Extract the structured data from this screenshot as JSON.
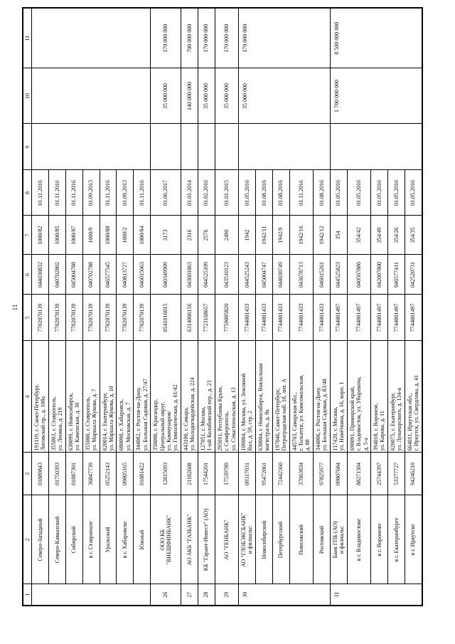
{
  "page": {
    "number": "11"
  },
  "table": {
    "headers": [
      "1",
      "2",
      "3",
      "4",
      "5",
      "6",
      "7",
      "8",
      "9",
      "10",
      "11"
    ],
    "rows": [
      {
        "cells": [
          {
            "c": 1,
            "t": "",
            "rs": 7
          },
          {
            "c": 2,
            "t": "Северо-Западный"
          },
          {
            "c": 3,
            "t": "01889843"
          },
          {
            "c": 4,
            "t": "191119, г. Санкт-Петербург,\nЛиговский пр., д. 108а"
          },
          {
            "c": 5,
            "t": "7702070139"
          },
          {
            "c": 6,
            "t": "044030832"
          },
          {
            "c": 7,
            "t": "1000/82"
          },
          {
            "c": 8,
            "t": "01.11.2016"
          },
          {
            "c": 9,
            "t": "",
            "rs": 7
          },
          {
            "c": 10,
            "t": "",
            "rs": 7
          },
          {
            "c": 11,
            "t": "",
            "rs": 7
          }
        ]
      },
      {
        "cells": [
          {
            "c": 2,
            "t": "Северо-Кавказский"
          },
          {
            "c": 3,
            "t": "01750393"
          },
          {
            "c": 4,
            "t": "355003, г. Ставрополь,\nул. Ленина, д. 219"
          },
          {
            "c": 5,
            "t": "7702070139"
          },
          {
            "c": 6,
            "t": "040702802"
          },
          {
            "c": 7,
            "t": "1000/85"
          },
          {
            "c": 8,
            "t": "01.11.2016"
          }
        ]
      },
      {
        "cells": [
          {
            "c": 2,
            "t": "Сибирский"
          },
          {
            "c": 3,
            "t": "01887301"
          },
          {
            "c": 4,
            "t": "630099, г. Новосибирск,\nул. Каменская, д. 30"
          },
          {
            "c": 5,
            "t": "7702070139"
          },
          {
            "c": 6,
            "t": "045004788"
          },
          {
            "c": 7,
            "t": "1000/87"
          },
          {
            "c": 8,
            "t": "01.11.2016"
          }
        ]
      },
      {
        "cells": [
          {
            "c": 2,
            "t": "в г. Ставрополе"
          },
          {
            "c": 3,
            "t": "36847739"
          },
          {
            "c": 4,
            "t": "355000, г. Ставрополь,\nул. Маршала Жукова, д. 7"
          },
          {
            "c": 5,
            "t": "7702070139"
          },
          {
            "c": 6,
            "t": "040702788"
          },
          {
            "c": 7,
            "t": "1000/9"
          },
          {
            "c": 8,
            "t": "01.09.2013"
          }
        ]
      },
      {
        "cells": [
          {
            "c": 2,
            "t": "Уральский"
          },
          {
            "c": 3,
            "t": "05252143"
          },
          {
            "c": 4,
            "t": "620014, г. Екатеринбург,\nул. Маршала Жукова, д. 10"
          },
          {
            "c": 5,
            "t": "7702070139"
          },
          {
            "c": 6,
            "t": "046577545"
          },
          {
            "c": 7,
            "t": "1000/88"
          },
          {
            "c": 8,
            "t": "01.11.2016"
          }
        ]
      },
      {
        "cells": [
          {
            "c": 2,
            "t": "в г. Хабаровске"
          },
          {
            "c": 3,
            "t": "09805165"
          },
          {
            "c": 4,
            "t": "680000, г. Хабаровск,\nул. Московская, д. 7"
          },
          {
            "c": 5,
            "t": "7702070139"
          },
          {
            "c": 6,
            "t": "040813727"
          },
          {
            "c": 7,
            "t": "1000/2"
          },
          {
            "c": 8,
            "t": "01.09.2013"
          }
        ]
      },
      {
        "cells": [
          {
            "c": 2,
            "t": "Южный"
          },
          {
            "c": 3,
            "t": "01881422"
          },
          {
            "c": 4,
            "t": "344082, г. Ростов-на-Дону,\nул. Большая Садовая, д. 27/47"
          },
          {
            "c": 5,
            "t": "7702070139"
          },
          {
            "c": 6,
            "t": "046015063"
          },
          {
            "c": 7,
            "t": "1000/84"
          },
          {
            "c": 8,
            "t": "01.11.2016"
          }
        ]
      },
      {
        "cells": [
          {
            "c": 1,
            "t": "26"
          },
          {
            "c": 2,
            "t": "ООО КБ\n\"ВНЕШФИНБАНК\""
          },
          {
            "c": 3,
            "t": "12815693"
          },
          {
            "c": 4,
            "t": "350000, г. Краснодар,\nЦентральный округ,\nул. Коммунаров/\nул. Гимназическая, д. 61/42"
          },
          {
            "c": 5,
            "t": "0541016015"
          },
          {
            "c": 6,
            "t": "040349909"
          },
          {
            "c": 7,
            "t": "3173"
          },
          {
            "c": 8,
            "t": "01.06.2017"
          },
          {
            "c": 9,
            "t": ""
          },
          {
            "c": 10,
            "t": "35 000 000"
          },
          {
            "c": 11,
            "t": "170 000 000"
          }
        ]
      },
      {
        "cells": [
          {
            "c": 1,
            "t": "27"
          },
          {
            "c": 2,
            "t": "АО АКБ \"ГАЗБАНК\""
          },
          {
            "c": 3,
            "t": "21182608"
          },
          {
            "c": 4,
            "t": "443100, г. Самара,\nул. Молодогвардейская, д. 224"
          },
          {
            "c": 5,
            "t": "6314006156"
          },
          {
            "c": 6,
            "t": "043601863"
          },
          {
            "c": 7,
            "t": "2316"
          },
          {
            "c": 8,
            "t": "01.01.2014"
          },
          {
            "c": 9,
            "t": ""
          },
          {
            "c": 10,
            "t": "140 000 000"
          },
          {
            "c": 11,
            "t": "700 000 000"
          }
        ]
      },
      {
        "cells": [
          {
            "c": 1,
            "t": "28"
          },
          {
            "c": 2,
            "t": "КБ \"Гарант-Инвест\" (АО)"
          },
          {
            "c": 3,
            "t": "17544201"
          },
          {
            "c": 4,
            "t": "127051, г. Москва,\n1-ый Колобовский пер., д. 23"
          },
          {
            "c": 5,
            "t": "7723168657"
          },
          {
            "c": 6,
            "t": "044525109"
          },
          {
            "c": 7,
            "t": "2576"
          },
          {
            "c": 8,
            "t": "01.02.2016"
          },
          {
            "c": 9,
            "t": ""
          },
          {
            "c": 10,
            "t": "35 000 000"
          },
          {
            "c": 11,
            "t": "170 000 000"
          }
        ]
      },
      {
        "cells": [
          {
            "c": 1,
            "t": "29"
          },
          {
            "c": 2,
            "t": "АО \"ГЕНБАНК\""
          },
          {
            "c": 3,
            "t": "17539789"
          },
          {
            "c": 4,
            "t": "295011, Республика Крым,\nг. Симферополь,\nул. Севастопольская, д. 13"
          },
          {
            "c": 5,
            "t": "7750005820"
          },
          {
            "c": 6,
            "t": "043510123"
          },
          {
            "c": 7,
            "t": "2490"
          },
          {
            "c": 8,
            "t": "01.01.2015"
          },
          {
            "c": 9,
            "t": ""
          },
          {
            "c": 10,
            "t": "35 000 000"
          },
          {
            "c": 11,
            "t": "170 000 000"
          }
        ]
      },
      {
        "cells": [
          {
            "c": 1,
            "t": "30",
            "rs": 5,
            "top": 1
          },
          {
            "c": 2,
            "t": "АО \"ГЛОБЭКСБАНК\"\nи филиалы:"
          },
          {
            "c": 3,
            "t": "09317031"
          },
          {
            "c": 4,
            "t": "109004, г. Москва, ул. Земляной\nВал, д. 59, стр. 2"
          },
          {
            "c": 5,
            "t": "7744001433"
          },
          {
            "c": 6,
            "t": "044525243"
          },
          {
            "c": 7,
            "t": "1942"
          },
          {
            "c": 8,
            "t": "01.05.2016"
          },
          {
            "c": 9,
            "t": "",
            "rs": 5
          },
          {
            "c": 10,
            "t": "35 000 000",
            "rs": 5,
            "top": 1
          },
          {
            "c": 11,
            "t": "170 000 000",
            "rs": 5,
            "top": 1
          }
        ]
      },
      {
        "cells": [
          {
            "c": 2,
            "t": "Новосибирский"
          },
          {
            "c": 3,
            "t": "95472061"
          },
          {
            "c": 4,
            "t": "630004, г. Новосибирск, Вокзальная\nмагистраль, д. 8а"
          },
          {
            "c": 5,
            "t": "7744001433"
          },
          {
            "c": 6,
            "t": "045004747"
          },
          {
            "c": 7,
            "t": "1942/11"
          },
          {
            "c": 8,
            "t": "01.08.2016"
          }
        ]
      },
      {
        "cells": [
          {
            "c": 2,
            "t": "Петербургский"
          },
          {
            "c": 3,
            "t": "72442360"
          },
          {
            "c": 4,
            "t": "197046, Санкт-Петербург,\nПетроградская наб. 18, лит. А"
          },
          {
            "c": 5,
            "t": "7744001433"
          },
          {
            "c": 6,
            "t": "044030749"
          },
          {
            "c": 7,
            "t": "1942/9"
          },
          {
            "c": 8,
            "t": "01.08.2016"
          }
        ]
      },
      {
        "cells": [
          {
            "c": 2,
            "t": "Поволжский"
          },
          {
            "c": 3,
            "t": "37063834"
          },
          {
            "c": 4,
            "t": "445703, Самарская обл.,\nг. Тольятти, ул. Комсомольская,\nд. 88"
          },
          {
            "c": 5,
            "t": "7744001433"
          },
          {
            "c": 6,
            "t": "043678713"
          },
          {
            "c": 7,
            "t": "1942/16"
          },
          {
            "c": 8,
            "t": "01.11.2016"
          }
        ]
      },
      {
        "cells": [
          {
            "c": 2,
            "t": "Ростовский"
          },
          {
            "c": 3,
            "t": "97825977"
          },
          {
            "c": 4,
            "t": "344006, г. Ростов-на-Дону,\nул. Большая Садовая, д. 83/48"
          },
          {
            "c": 5,
            "t": "7744001433"
          },
          {
            "c": 6,
            "t": "046015261"
          },
          {
            "c": 7,
            "t": "1942/12"
          },
          {
            "c": 8,
            "t": "01.08.2016"
          }
        ]
      },
      {
        "cells": [
          {
            "c": 1,
            "t": "31",
            "rs": 5,
            "top": 1
          },
          {
            "c": 2,
            "t": "Банк ГПБ (АО)\nи филиалы:"
          },
          {
            "c": 3,
            "t": "09807684"
          },
          {
            "c": 4,
            "t": "117420, г. Москва,\nул. Намёткина, д. 16, корп. 1"
          },
          {
            "c": 5,
            "t": "7744001497"
          },
          {
            "c": 6,
            "t": "044525823"
          },
          {
            "c": 7,
            "t": "354"
          },
          {
            "c": 8,
            "t": "01.05.2016"
          },
          {
            "c": 9,
            "t": "",
            "rs": 5
          },
          {
            "c": 10,
            "t": "1 700 000 000",
            "rs": 5,
            "top": 1
          },
          {
            "c": 11,
            "t": "8 500 000 000",
            "rs": 5,
            "top": 1
          }
        ]
      },
      {
        "cells": [
          {
            "c": 2,
            "t": "в г. Владивостоке"
          },
          {
            "c": 3,
            "t": "88271304"
          },
          {
            "c": 4,
            "t": "690091, Приморский край,\nг. Владивосток, ул. Уборевича,\nд. 5-а"
          },
          {
            "c": 5,
            "t": "7744001497"
          },
          {
            "c": 6,
            "t": "040507886"
          },
          {
            "c": 7,
            "t": "354/42"
          },
          {
            "c": 8,
            "t": "01.05.2016"
          }
        ]
      },
      {
        "cells": [
          {
            "c": 2,
            "t": "в г. Воронеже"
          },
          {
            "c": 3,
            "t": "25744397"
          },
          {
            "c": 4,
            "t": "394018, г. Воронеж,\nул. Кирова, д. 11"
          },
          {
            "c": 5,
            "t": "7744001497"
          },
          {
            "c": 6,
            "t": "042007800"
          },
          {
            "c": 7,
            "t": "354/49"
          },
          {
            "c": 8,
            "t": "01.05.2016"
          }
        ]
      },
      {
        "cells": [
          {
            "c": 2,
            "t": "в г. Екатеринбурге"
          },
          {
            "c": 3,
            "t": "53377727"
          },
          {
            "c": 4,
            "t": "620075, г. Екатеринбург,\nул. Луначарского, д. 134-в"
          },
          {
            "c": 5,
            "t": "7744001497"
          },
          {
            "c": 6,
            "t": "046577411"
          },
          {
            "c": 7,
            "t": "354/26"
          },
          {
            "c": 8,
            "t": "01.05.2016"
          }
        ]
      },
      {
        "cells": [
          {
            "c": 2,
            "t": "в г. Иркутске"
          },
          {
            "c": 3,
            "t": "94246210"
          },
          {
            "c": 4,
            "t": "664011, Иркутская обл.,\nг. Иркутск, ул. Свердлова, д. 41"
          },
          {
            "c": 5,
            "t": "7744001497"
          },
          {
            "c": 6,
            "t": "042520731"
          },
          {
            "c": 7,
            "t": "354/35"
          },
          {
            "c": 8,
            "t": "01.05.2016"
          }
        ]
      }
    ]
  }
}
